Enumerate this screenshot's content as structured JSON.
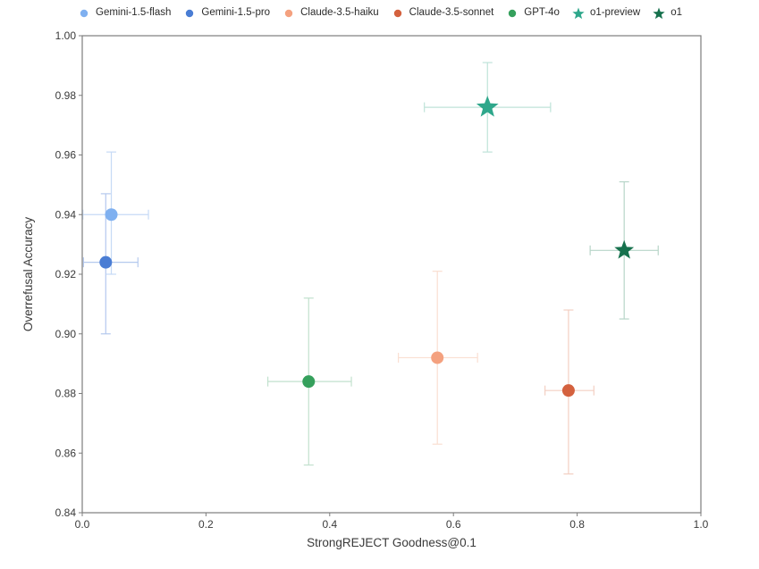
{
  "figure": {
    "background": "#ffffff"
  },
  "style": {
    "spine_color": "#7d7d7d",
    "tick_color": "#7d7d7d",
    "text_color": "#3a3a3a",
    "legend_text_color": "#2b2b2b"
  },
  "chart_data": {
    "type": "scatter",
    "title": "",
    "xlabel": "StrongREJECT Goodness@0.1",
    "ylabel": "Overrefusal Accuracy",
    "xlim": [
      0.0,
      1.0
    ],
    "ylim": [
      0.84,
      1.0
    ],
    "xticks": [
      0.0,
      0.2,
      0.4,
      0.6,
      0.8,
      1.0
    ],
    "xtick_labels": [
      "0.0",
      "0.2",
      "0.4",
      "0.6",
      "0.8",
      "1.0"
    ],
    "yticks": [
      0.84,
      0.86,
      0.88,
      0.9,
      0.92,
      0.94,
      0.96,
      0.98,
      1.0
    ],
    "ytick_labels": [
      "0.84",
      "0.86",
      "0.88",
      "0.90",
      "0.92",
      "0.94",
      "0.96",
      "0.98",
      "1.00"
    ],
    "grid": false,
    "legend_position": "top-center",
    "error_bars": "x-and-y-with-caps",
    "series": [
      {
        "name": "Gemini-1.5-flash",
        "marker": "circle",
        "marker_size": 7,
        "color": "#7fb0f0",
        "err_color": "#c6daf6",
        "x": 0.047,
        "y": 0.94,
        "x_err": [
          0.001,
          0.107
        ],
        "y_err": [
          0.92,
          0.961
        ]
      },
      {
        "name": "Gemini-1.5-pro",
        "marker": "circle",
        "marker_size": 7,
        "color": "#4a7dd4",
        "err_color": "#b5c9ee",
        "x": 0.038,
        "y": 0.924,
        "x_err": [
          0.002,
          0.09
        ],
        "y_err": [
          0.9,
          0.947
        ]
      },
      {
        "name": "Claude-3.5-haiku",
        "marker": "circle",
        "marker_size": 7,
        "color": "#f4a17f",
        "err_color": "#fadfd2",
        "x": 0.574,
        "y": 0.892,
        "x_err": [
          0.511,
          0.639
        ],
        "y_err": [
          0.863,
          0.921
        ]
      },
      {
        "name": "Claude-3.5-sonnet",
        "marker": "circle",
        "marker_size": 7,
        "color": "#d4613e",
        "err_color": "#f3cfc2",
        "x": 0.786,
        "y": 0.881,
        "x_err": [
          0.748,
          0.827
        ],
        "y_err": [
          0.853,
          0.908
        ]
      },
      {
        "name": "GPT-4o",
        "marker": "circle",
        "marker_size": 7,
        "color": "#35a05c",
        "err_color": "#c2e1ce",
        "x": 0.366,
        "y": 0.884,
        "x_err": [
          0.3,
          0.435
        ],
        "y_err": [
          0.856,
          0.912
        ]
      },
      {
        "name": "o1-preview",
        "marker": "star",
        "marker_size": 13,
        "color": "#2ea78b",
        "err_color": "#bfe3d9",
        "x": 0.655,
        "y": 0.976,
        "x_err": [
          0.553,
          0.757
        ],
        "y_err": [
          0.961,
          0.991
        ]
      },
      {
        "name": "o1",
        "marker": "star",
        "marker_size": 11.5,
        "color": "#16714d",
        "err_color": "#b7d5c8",
        "x": 0.876,
        "y": 0.928,
        "x_err": [
          0.821,
          0.931
        ],
        "y_err": [
          0.905,
          0.951
        ]
      }
    ]
  }
}
